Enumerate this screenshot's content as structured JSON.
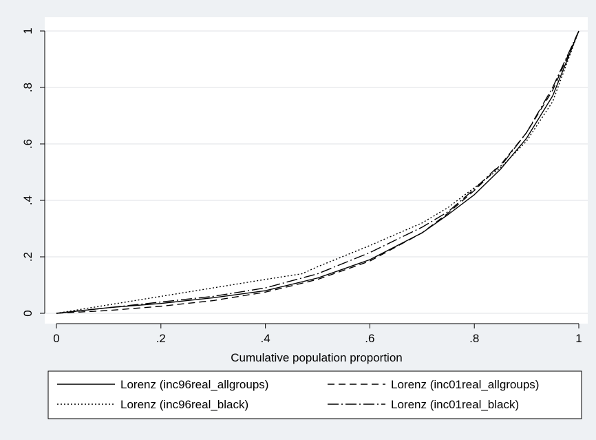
{
  "colors": {
    "page_background": "#eef1f4",
    "plot_background": "#ffffff",
    "grid": "#e5e8eb",
    "line": "#000000"
  },
  "chart_data": {
    "type": "line",
    "title": "",
    "xlabel": "Cumulative population proportion",
    "ylabel": "",
    "xlim": [
      0,
      1
    ],
    "ylim": [
      0,
      1
    ],
    "grid": true,
    "x_ticks": [
      {
        "value": 0,
        "label": "0"
      },
      {
        "value": 0.2,
        "label": ".2"
      },
      {
        "value": 0.4,
        "label": ".4"
      },
      {
        "value": 0.6,
        "label": ".6"
      },
      {
        "value": 0.8,
        "label": ".8"
      },
      {
        "value": 1,
        "label": "1"
      }
    ],
    "y_ticks": [
      {
        "value": 0,
        "label": "0"
      },
      {
        "value": 0.2,
        "label": ".2"
      },
      {
        "value": 0.4,
        "label": ".4"
      },
      {
        "value": 0.6,
        "label": ".6"
      },
      {
        "value": 0.8,
        "label": ".8"
      },
      {
        "value": 1,
        "label": "1"
      }
    ],
    "legend_position": "bottom",
    "series": [
      {
        "name": "Lorenz (inc96real_allgroups)",
        "dash": "solid",
        "x": [
          0,
          0.05,
          0.1,
          0.2,
          0.3,
          0.4,
          0.5,
          0.6,
          0.7,
          0.75,
          0.8,
          0.85,
          0.9,
          0.95,
          1
        ],
        "y": [
          0,
          0.01,
          0.02,
          0.035,
          0.055,
          0.08,
          0.125,
          0.19,
          0.285,
          0.35,
          0.42,
          0.51,
          0.62,
          0.77,
          1
        ]
      },
      {
        "name": "Lorenz (inc01real_allgroups)",
        "dash": "dash",
        "x": [
          0,
          0.05,
          0.1,
          0.2,
          0.3,
          0.4,
          0.5,
          0.6,
          0.7,
          0.75,
          0.8,
          0.85,
          0.9,
          0.95,
          1
        ],
        "y": [
          0,
          0.005,
          0.01,
          0.025,
          0.045,
          0.075,
          0.12,
          0.185,
          0.285,
          0.355,
          0.435,
          0.525,
          0.64,
          0.79,
          1
        ]
      },
      {
        "name": "Lorenz (inc96real_black)",
        "dash": "dot",
        "x": [
          0,
          0.05,
          0.1,
          0.2,
          0.3,
          0.4,
          0.47,
          0.5,
          0.6,
          0.7,
          0.75,
          0.8,
          0.85,
          0.9,
          0.95,
          1
        ],
        "y": [
          0,
          0.015,
          0.03,
          0.06,
          0.09,
          0.12,
          0.14,
          0.165,
          0.24,
          0.32,
          0.375,
          0.445,
          0.515,
          0.61,
          0.75,
          1
        ]
      },
      {
        "name": "Lorenz (inc01real_black)",
        "dash": "dashdot",
        "x": [
          0,
          0.05,
          0.1,
          0.2,
          0.3,
          0.4,
          0.5,
          0.6,
          0.7,
          0.75,
          0.8,
          0.84,
          0.85,
          0.9,
          0.95,
          1
        ],
        "y": [
          0,
          0.01,
          0.02,
          0.04,
          0.06,
          0.09,
          0.14,
          0.215,
          0.305,
          0.36,
          0.44,
          0.51,
          0.52,
          0.64,
          0.8,
          1
        ]
      }
    ]
  }
}
